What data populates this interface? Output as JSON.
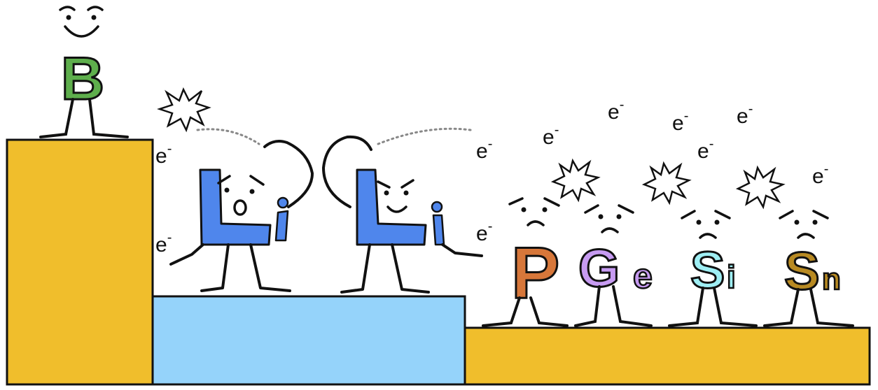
{
  "letters": {
    "B": {
      "main": "B",
      "sub": ""
    },
    "Li1": {
      "main": "L",
      "sub": "i"
    },
    "Li2": {
      "main": "L",
      "sub": "i"
    },
    "P": {
      "main": "P",
      "sub": ""
    },
    "Ge": {
      "main": "G",
      "sub": "e"
    },
    "Si": {
      "main": "S",
      "sub": "i"
    },
    "Sn": {
      "main": "S",
      "sub": "n"
    }
  },
  "electron": {
    "base": "e",
    "charge": "-"
  },
  "colors": {
    "tall_block": "#F0BE2C",
    "middle_block": "#95D3FA",
    "low_block": "#F0BE2C",
    "B": "#5EAE4C",
    "Li": "#4F86EC",
    "P": "#D7773A",
    "Ge": "#C79BF2",
    "Si": "#9FEFF4",
    "Sn": "#B88A22",
    "outline": "#111111",
    "dotted": "#888888"
  },
  "icons": [
    "happy-face-icon",
    "surprised-face-icon",
    "grin-face-icon",
    "worried-face-icon",
    "burst-icon"
  ]
}
